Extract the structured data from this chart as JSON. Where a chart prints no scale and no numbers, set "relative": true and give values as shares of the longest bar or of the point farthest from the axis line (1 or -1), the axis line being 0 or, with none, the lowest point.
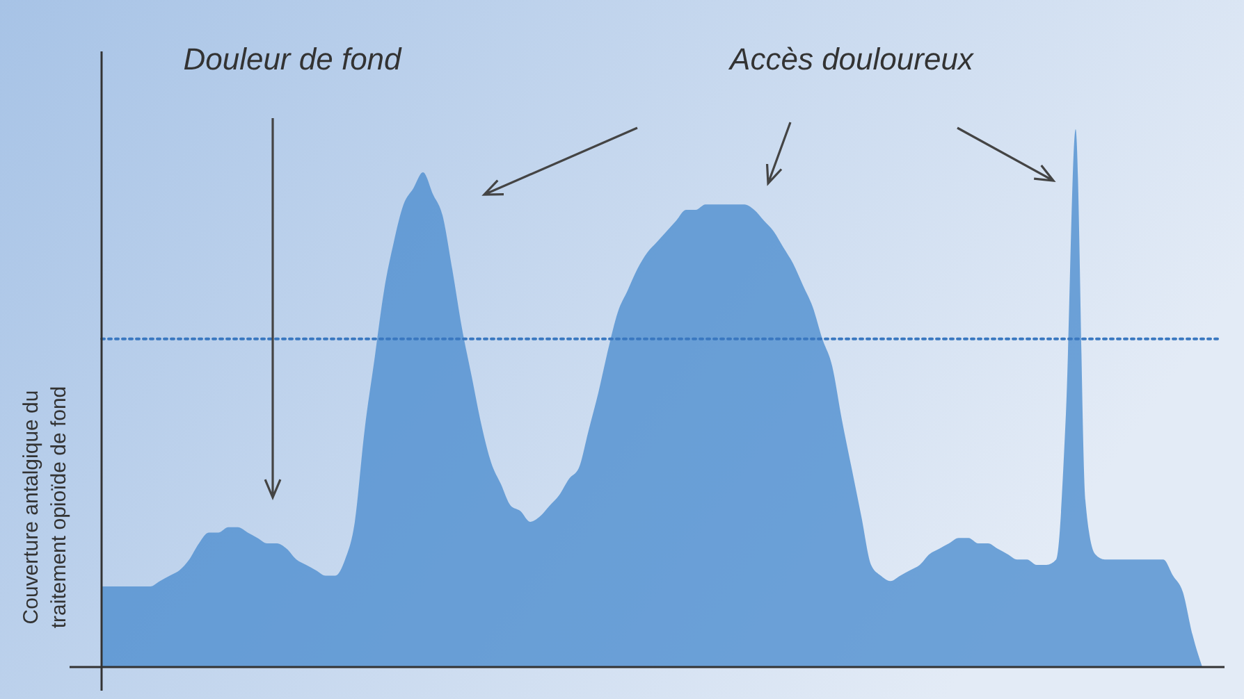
{
  "chart_data": {
    "type": "area",
    "relative": true,
    "ylabel": "Couverture antalgique du\ntraitement opioïde de fond",
    "annotations": [
      "Douleur de fond",
      "Accès douloureux"
    ],
    "categories": [
      null,
      null,
      null,
      null,
      null,
      null,
      null,
      null,
      null,
      null,
      null,
      null,
      null,
      null,
      null,
      null,
      null,
      null,
      null,
      null,
      null,
      null,
      null,
      null,
      null,
      null,
      null,
      null,
      null,
      null,
      null,
      null,
      null,
      null,
      null,
      null,
      null,
      null,
      null,
      null,
      null,
      null,
      null,
      null,
      null,
      null,
      null,
      null,
      null,
      null,
      null,
      null,
      null,
      null,
      null,
      null,
      null,
      null,
      null,
      null,
      null,
      null,
      null,
      null,
      null,
      null,
      null,
      null,
      null,
      null,
      null,
      null,
      null,
      null,
      null,
      null,
      null,
      null,
      null,
      null,
      null,
      null,
      null,
      null,
      null,
      null,
      null,
      null,
      null,
      null,
      null,
      null,
      null,
      null,
      null,
      null,
      null,
      null,
      null,
      null,
      null,
      null,
      null,
      null,
      null,
      null,
      null,
      null,
      null,
      null,
      null,
      null,
      null,
      null
    ],
    "series": [
      {
        "color": "#4f8fd0",
        "values": [
          0.15,
          0.15,
          0.15,
          0.15,
          0.15,
          0.15,
          0.16,
          0.17,
          0.18,
          0.2,
          0.23,
          0.25,
          0.25,
          0.26,
          0.26,
          0.25,
          0.24,
          0.23,
          0.23,
          0.22,
          0.2,
          0.19,
          0.18,
          0.17,
          0.17,
          0.2,
          0.27,
          0.44,
          0.57,
          0.7,
          0.79,
          0.86,
          0.89,
          0.92,
          0.88,
          0.84,
          0.74,
          0.63,
          0.54,
          0.45,
          0.38,
          0.34,
          0.3,
          0.29,
          0.27,
          0.28,
          0.3,
          0.32,
          0.35,
          0.37,
          0.44,
          0.51,
          0.59,
          0.66,
          0.7,
          0.74,
          0.77,
          0.79,
          0.81,
          0.83,
          0.85,
          0.85,
          0.86,
          0.86,
          0.86,
          0.86,
          0.86,
          0.85,
          0.83,
          0.81,
          0.78,
          0.75,
          0.71,
          0.67,
          0.61,
          0.56,
          0.46,
          0.37,
          0.28,
          0.19,
          0.17,
          0.16,
          0.17,
          0.18,
          0.19,
          0.21,
          0.22,
          0.23,
          0.24,
          0.24,
          0.23,
          0.23,
          0.22,
          0.21,
          0.2,
          0.2,
          0.19,
          0.19,
          0.2,
          0.47,
          1,
          0.31,
          0.21,
          0.2,
          0.2,
          0.2,
          0.2,
          0.2,
          0.2,
          0.2,
          0.17,
          0.14,
          0.06,
          0
        ]
      }
    ],
    "ref_lines": [
      {
        "axis": "y",
        "value": 0.61,
        "color": "#3a78c0",
        "line_style": "dotted"
      }
    ]
  }
}
